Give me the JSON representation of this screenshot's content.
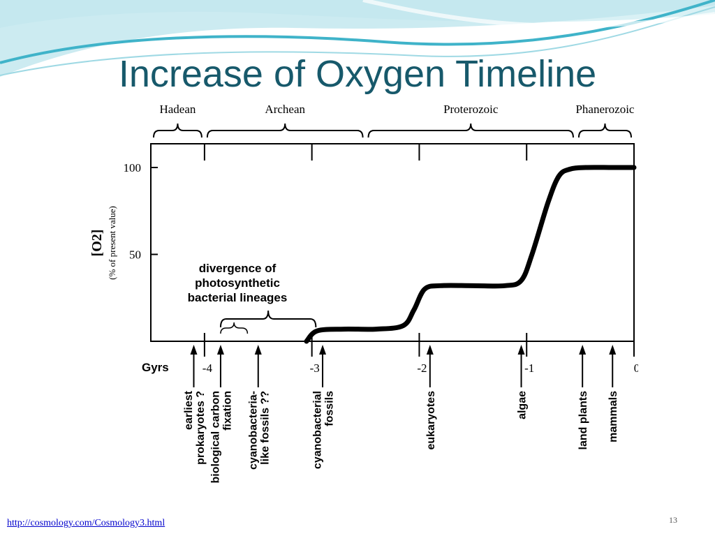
{
  "slide": {
    "title": "Increase of Oxygen Timeline",
    "source_link": "http://cosmology.com/Cosmology3.html",
    "slide_number": "13",
    "colors": {
      "title": "#17596b",
      "wave_dark": "#3fb3c9",
      "wave_light": "#bfe6ee",
      "link": "#0000cc"
    }
  },
  "chart_data": {
    "type": "line",
    "ylabel": "[O2]",
    "ylabel_sub": "(% of present value)",
    "xlabel": "Gyrs",
    "ylim": [
      0,
      100
    ],
    "xlim": [
      -4.5,
      0
    ],
    "y_ticks": [
      {
        "value": 100,
        "label": "100"
      },
      {
        "value": 50,
        "label": "50"
      }
    ],
    "x_ticks": [
      {
        "value": -4,
        "label": "-4"
      },
      {
        "value": -3,
        "label": "-3"
      },
      {
        "value": -2,
        "label": "-2"
      },
      {
        "value": -1,
        "label": "-1"
      },
      {
        "value": 0,
        "label": "0"
      }
    ],
    "eons": [
      {
        "name": "Hadean",
        "start": -4.5,
        "end": -4.0
      },
      {
        "name": "Archean",
        "start": -4.0,
        "end": -2.5
      },
      {
        "name": "Proterozoic",
        "start": -2.5,
        "end": -0.54
      },
      {
        "name": "Phanerozoic",
        "start": -0.54,
        "end": 0
      }
    ],
    "series": [
      {
        "x": [
          -3.05,
          -2.95,
          -2.7,
          -2.4,
          -2.15,
          -2.05,
          -1.95,
          -1.8,
          -1.5,
          -1.2,
          -1.05,
          -0.95,
          -0.8,
          -0.7,
          -0.6,
          -0.45,
          -0.2,
          0
        ],
        "y": [
          0,
          6,
          7,
          7,
          9,
          18,
          30,
          32,
          32,
          32,
          35,
          50,
          80,
          95,
          99,
          100,
          100,
          100
        ]
      }
    ],
    "annotation_divergence": {
      "lines": [
        "divergence of",
        "photosynthetic",
        "bacterial lineages"
      ],
      "start": -3.85,
      "end": -2.95,
      "inner_start": -3.85,
      "inner_end": -3.6
    },
    "events": [
      {
        "x": -4.1,
        "lines": [
          "earliest",
          "prokaryotes ?"
        ]
      },
      {
        "x": -3.85,
        "lines": [
          "biological carbon",
          "fixation"
        ]
      },
      {
        "x": -3.5,
        "lines": [
          "cyanobacteria-",
          "like fossils ??"
        ]
      },
      {
        "x": -2.9,
        "lines": [
          "cyanobacterial",
          "fossils"
        ]
      },
      {
        "x": -1.9,
        "lines": [
          "eukaryotes"
        ]
      },
      {
        "x": -1.05,
        "lines": [
          "algae"
        ]
      },
      {
        "x": -0.48,
        "lines": [
          "land plants"
        ]
      },
      {
        "x": -0.2,
        "lines": [
          "mammals"
        ]
      }
    ]
  }
}
